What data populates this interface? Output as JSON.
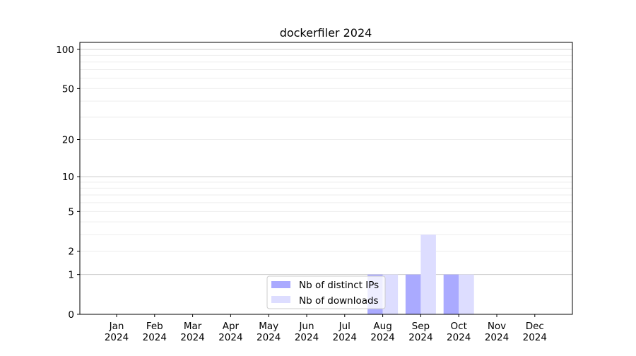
{
  "chart_data": {
    "type": "bar",
    "title": "dockerfiler 2024",
    "xlabel": "",
    "ylabel": "",
    "y_scale": "log1p",
    "ylim": [
      0,
      113
    ],
    "grid": "horizontal, major and minor",
    "legend_position": "lower center",
    "categories": [
      "Jan\n2024",
      "Feb\n2024",
      "Mar\n2024",
      "Apr\n2024",
      "May\n2024",
      "Jun\n2024",
      "Jul\n2024",
      "Aug\n2024",
      "Sep\n2024",
      "Oct\n2024",
      "Nov\n2024",
      "Dec\n2024"
    ],
    "y_ticks": [
      0,
      1,
      2,
      5,
      10,
      20,
      50,
      100
    ],
    "series": [
      {
        "name": "Nb of distinct IPs",
        "color": "#aaaaff",
        "values": [
          0,
          0,
          0,
          0,
          0,
          0,
          0,
          1,
          1,
          1,
          0,
          0
        ]
      },
      {
        "name": "Nb of downloads",
        "color": "#ddddff",
        "values": [
          0,
          0,
          0,
          0,
          0,
          0,
          0,
          1,
          3,
          1,
          0,
          0
        ]
      }
    ]
  }
}
